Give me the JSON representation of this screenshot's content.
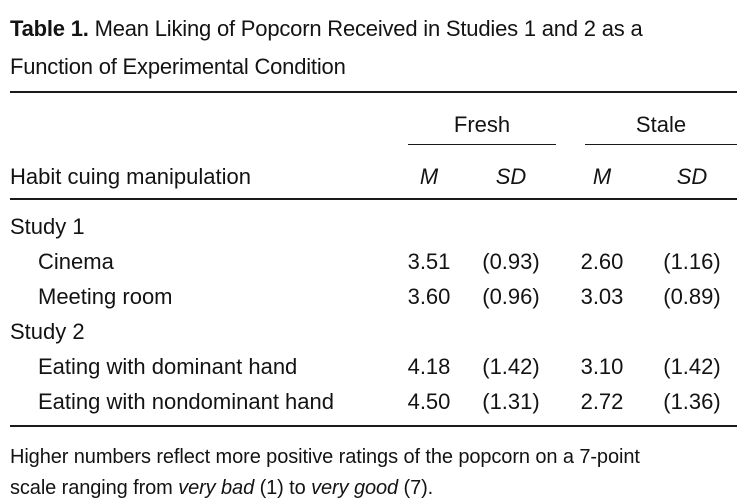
{
  "title": {
    "label": "Table 1.",
    "caption_line1": "Mean Liking of Popcorn Received in Studies 1 and 2 as a",
    "caption_line2": "Function of Experimental Condition"
  },
  "table": {
    "stub_header": "Habit cuing manipulation",
    "spanners": [
      "Fresh",
      "Stale"
    ],
    "col_headers": [
      "M",
      "SD",
      "M",
      "SD"
    ],
    "rows": [
      {
        "label": "Study 1",
        "values": [
          "",
          "",
          "",
          ""
        ]
      },
      {
        "label": "Cinema",
        "values": [
          "3.51",
          "(0.93)",
          "2.60",
          "(1.16)"
        ]
      },
      {
        "label": "Meeting room",
        "values": [
          "3.60",
          "(0.96)",
          "3.03",
          "(0.89)"
        ]
      },
      {
        "label": "Study 2",
        "values": [
          "",
          "",
          "",
          ""
        ]
      },
      {
        "label": "Eating with dominant hand",
        "values": [
          "4.18",
          "(1.42)",
          "3.10",
          "(1.42)"
        ]
      },
      {
        "label": "Eating with nondominant hand",
        "values": [
          "4.50",
          "(1.31)",
          "2.72",
          "(1.36)"
        ]
      }
    ]
  },
  "note": {
    "line1": "Higher numbers reflect more positive ratings of the popcorn on a 7-point",
    "line2_start": "scale ranging from ",
    "line2_italic1": "very bad",
    "line2_mid": " (1) to ",
    "line2_italic2": "very good",
    "line2_end": " (7)."
  }
}
